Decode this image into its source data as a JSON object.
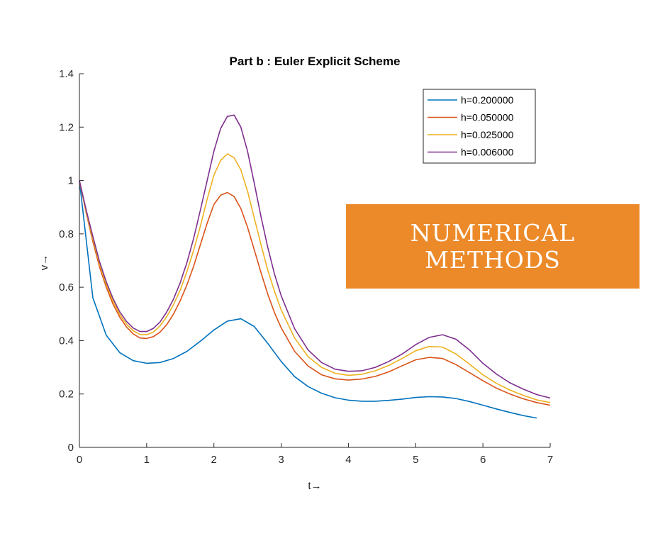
{
  "chart_data": {
    "type": "line",
    "title": "Part b : Euler Explicit Scheme",
    "xlabel": "t→",
    "ylabel": "v→",
    "xlim": [
      0,
      7
    ],
    "ylim": [
      0,
      1.4
    ],
    "xticks": [
      0,
      1,
      2,
      3,
      4,
      5,
      6,
      7
    ],
    "yticks": [
      0,
      0.2,
      0.4,
      0.6,
      0.8,
      1,
      1.2,
      1.4
    ],
    "xtick_labels": [
      "0",
      "1",
      "2",
      "3",
      "4",
      "5",
      "6",
      "7"
    ],
    "ytick_labels": [
      "0",
      "0.2",
      "0.4",
      "0.6",
      "0.8",
      "1",
      "1.2",
      "1.4"
    ],
    "grid": false,
    "legend_position": "top-right",
    "series": [
      {
        "name": "h=0.200000",
        "color": "#0072bd",
        "x": [
          0,
          0.2,
          0.4,
          0.6,
          0.8,
          1.0,
          1.2,
          1.4,
          1.6,
          1.8,
          2.0,
          2.2,
          2.4,
          2.6,
          2.8,
          3.0,
          3.2,
          3.4,
          3.6,
          3.8,
          4.0,
          4.2,
          4.4,
          4.6,
          4.8,
          5.0,
          5.2,
          5.4,
          5.6,
          5.8,
          6.0,
          6.2,
          6.4,
          6.6,
          6.8
        ],
        "y": [
          1.0,
          0.56,
          0.42,
          0.355,
          0.325,
          0.315,
          0.318,
          0.333,
          0.36,
          0.398,
          0.44,
          0.473,
          0.482,
          0.453,
          0.39,
          0.322,
          0.265,
          0.228,
          0.203,
          0.186,
          0.177,
          0.173,
          0.173,
          0.176,
          0.181,
          0.187,
          0.19,
          0.189,
          0.183,
          0.172,
          0.158,
          0.144,
          0.131,
          0.119,
          0.11
        ]
      },
      {
        "name": "h=0.050000",
        "color": "#d95319",
        "x": [
          0,
          0.1,
          0.2,
          0.3,
          0.4,
          0.5,
          0.6,
          0.7,
          0.8,
          0.9,
          1.0,
          1.1,
          1.2,
          1.3,
          1.4,
          1.5,
          1.6,
          1.7,
          1.8,
          1.9,
          2.0,
          2.1,
          2.2,
          2.3,
          2.4,
          2.5,
          2.6,
          2.7,
          2.8,
          2.9,
          3.0,
          3.2,
          3.4,
          3.6,
          3.8,
          4.0,
          4.2,
          4.4,
          4.6,
          4.8,
          5.0,
          5.2,
          5.4,
          5.6,
          5.8,
          6.0,
          6.2,
          6.4,
          6.6,
          6.8,
          7.0
        ],
        "y": [
          1.0,
          0.88,
          0.77,
          0.675,
          0.6,
          0.537,
          0.488,
          0.451,
          0.425,
          0.41,
          0.408,
          0.415,
          0.432,
          0.46,
          0.5,
          0.55,
          0.61,
          0.68,
          0.76,
          0.84,
          0.91,
          0.945,
          0.955,
          0.94,
          0.895,
          0.825,
          0.74,
          0.655,
          0.575,
          0.505,
          0.448,
          0.36,
          0.305,
          0.272,
          0.257,
          0.252,
          0.256,
          0.266,
          0.283,
          0.306,
          0.328,
          0.337,
          0.333,
          0.31,
          0.28,
          0.25,
          0.222,
          0.2,
          0.182,
          0.168,
          0.158
        ]
      },
      {
        "name": "h=0.025000",
        "color": "#edb120",
        "x": [
          0,
          0.1,
          0.2,
          0.3,
          0.4,
          0.5,
          0.6,
          0.7,
          0.8,
          0.9,
          1.0,
          1.1,
          1.2,
          1.3,
          1.4,
          1.5,
          1.6,
          1.7,
          1.8,
          1.9,
          2.0,
          2.1,
          2.2,
          2.3,
          2.4,
          2.5,
          2.6,
          2.7,
          2.8,
          2.9,
          3.0,
          3.2,
          3.4,
          3.6,
          3.8,
          4.0,
          4.2,
          4.4,
          4.6,
          4.8,
          5.0,
          5.2,
          5.4,
          5.6,
          5.8,
          6.0,
          6.2,
          6.4,
          6.6,
          6.8,
          7.0
        ],
        "y": [
          1.0,
          0.885,
          0.78,
          0.685,
          0.61,
          0.548,
          0.498,
          0.462,
          0.437,
          0.423,
          0.422,
          0.432,
          0.455,
          0.49,
          0.535,
          0.59,
          0.66,
          0.74,
          0.83,
          0.93,
          1.02,
          1.075,
          1.1,
          1.085,
          1.04,
          0.96,
          0.86,
          0.76,
          0.665,
          0.585,
          0.515,
          0.41,
          0.34,
          0.3,
          0.278,
          0.27,
          0.274,
          0.287,
          0.307,
          0.333,
          0.362,
          0.378,
          0.376,
          0.35,
          0.312,
          0.272,
          0.24,
          0.215,
          0.195,
          0.178,
          0.168
        ]
      },
      {
        "name": "h=0.006000",
        "color": "#7e2f8e",
        "x": [
          0,
          0.1,
          0.2,
          0.3,
          0.4,
          0.5,
          0.6,
          0.7,
          0.8,
          0.9,
          1.0,
          1.1,
          1.2,
          1.3,
          1.4,
          1.5,
          1.6,
          1.7,
          1.8,
          1.9,
          2.0,
          2.1,
          2.2,
          2.3,
          2.4,
          2.5,
          2.6,
          2.7,
          2.8,
          2.9,
          3.0,
          3.2,
          3.4,
          3.6,
          3.8,
          4.0,
          4.2,
          4.4,
          4.6,
          4.8,
          5.0,
          5.2,
          5.4,
          5.6,
          5.8,
          6.0,
          6.2,
          6.4,
          6.6,
          6.8,
          7.0
        ],
        "y": [
          1.0,
          0.89,
          0.79,
          0.695,
          0.62,
          0.558,
          0.508,
          0.472,
          0.447,
          0.434,
          0.434,
          0.446,
          0.47,
          0.508,
          0.556,
          0.618,
          0.694,
          0.785,
          0.89,
          1.0,
          1.11,
          1.195,
          1.24,
          1.245,
          1.2,
          1.11,
          0.99,
          0.865,
          0.75,
          0.65,
          0.568,
          0.445,
          0.365,
          0.318,
          0.293,
          0.285,
          0.287,
          0.3,
          0.322,
          0.35,
          0.385,
          0.412,
          0.422,
          0.405,
          0.365,
          0.315,
          0.275,
          0.242,
          0.218,
          0.198,
          0.185
        ]
      }
    ]
  },
  "banner": {
    "line1": "NUMERICAL",
    "line2": "METHODS",
    "color": "#ec8a2a"
  }
}
